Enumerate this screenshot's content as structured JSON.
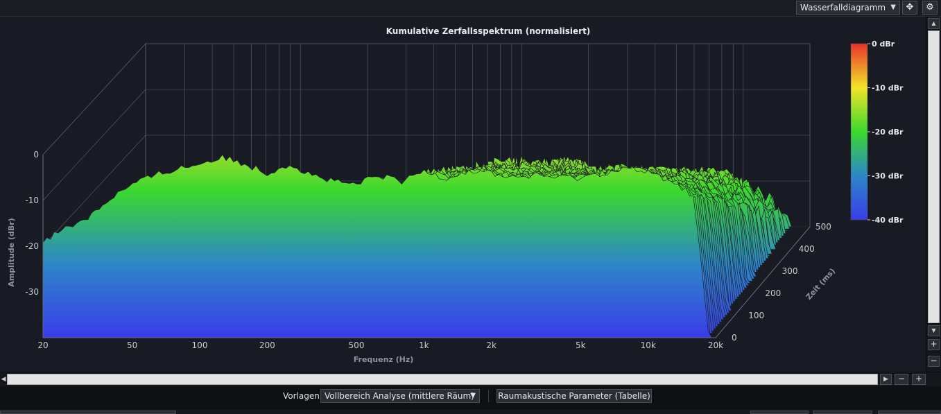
{
  "toolbar": {
    "view_select": "Wasserfalldiagramm",
    "move_icon": "move-icon",
    "gear_icon": "gear-icon"
  },
  "chart_data": {
    "type": "waterfall",
    "title": "Kumulative Zerfallsspektrum (normalisiert)",
    "xlabel": "Frequenz (Hz)",
    "ylabel": "Amplitude (dBr)",
    "zlabel": "Zeit (ms)",
    "x_scale": "log",
    "xlim": [
      20,
      20000
    ],
    "ylim": [
      -40,
      0
    ],
    "zlim": [
      0,
      500
    ],
    "x_ticks": [
      "20",
      "50",
      "100",
      "200",
      "500",
      "1k",
      "2k",
      "5k",
      "10k",
      "20k"
    ],
    "x_tick_values": [
      20,
      50,
      100,
      200,
      500,
      1000,
      2000,
      5000,
      10000,
      20000
    ],
    "y_ticks": [
      "0",
      "-10",
      "-20",
      "-30"
    ],
    "y_tick_values": [
      0,
      -10,
      -20,
      -30
    ],
    "z_ticks": [
      "0",
      "100",
      "200",
      "300",
      "400",
      "500"
    ],
    "z_tick_values": [
      0,
      100,
      200,
      300,
      400,
      500
    ],
    "colorbar": {
      "labels": [
        "0 dBr",
        "-10 dBr",
        "-20 dBr",
        "-30 dBr",
        "-40 dBr"
      ],
      "values": [
        0,
        -10,
        -20,
        -30,
        -40
      ],
      "colors": [
        "#e8322a",
        "#f2e42a",
        "#3ad82e",
        "#2d86c8",
        "#3a3ce8"
      ]
    },
    "slice_count": 50,
    "initial_spectrum": {
      "freq_hz": [
        32,
        40,
        50,
        63,
        80,
        100,
        125,
        160,
        200,
        250,
        300,
        400,
        500,
        630,
        800,
        1000,
        1250,
        1600,
        2000,
        2500,
        3150,
        4000,
        5000,
        6300,
        8000,
        10000,
        12500,
        16000,
        20000
      ],
      "amp_dbr": [
        -13.5,
        -9.5,
        -6.5,
        -4.5,
        -3.0,
        -2.0,
        -0.5,
        -2.0,
        -4.0,
        -2.0,
        -4.0,
        -6.0,
        -6.5,
        -4.5,
        -6.0,
        -3.5,
        -5.0,
        -3.5,
        -4.0,
        -5.0,
        -4.5,
        -5.0,
        -5.0,
        -4.0,
        -3.0,
        -4.0,
        -5.5,
        -9.0,
        -35.0
      ]
    }
  },
  "bottom": {
    "presets_label": "Vorlagen",
    "preset_value": "Vollbereich Analyse (mittlere Räum)",
    "room_button": "Raumakustische Parameter (Tabelle)"
  }
}
